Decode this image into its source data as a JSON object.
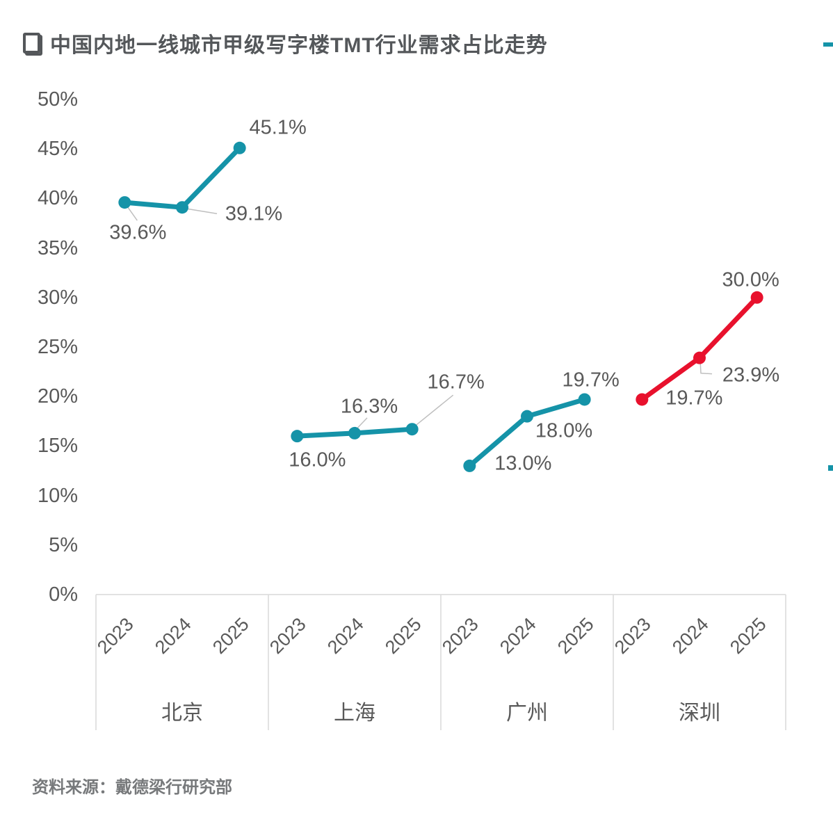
{
  "title": "中国内地一线城市甲级写字楼TMT行业需求占比走势",
  "source": "资料来源：戴德梁行研究部",
  "colors": {
    "teal": "#1593A8",
    "red": "#E8112D",
    "text_gray": "#595959",
    "title_gray": "#54575A",
    "axis_gray": "#D9D9D9",
    "leader_gray": "#BFBFBF",
    "source_gray": "#77797B"
  },
  "chart_data": {
    "type": "line",
    "title": "中国内地一线城市甲级写字楼TMT行业需求占比走势",
    "ylim": [
      0,
      50
    ],
    "y_ticks": [
      "0%",
      "5%",
      "10%",
      "15%",
      "20%",
      "25%",
      "30%",
      "35%",
      "40%",
      "45%",
      "50%"
    ],
    "x_years": [
      "2023",
      "2024",
      "2025"
    ],
    "grid": false,
    "legend_position": "none",
    "data_label_format": "one-decimal-percent",
    "series": [
      {
        "key": "beijing",
        "name": "北京",
        "color": "#1593A8",
        "values": [
          39.6,
          39.1,
          45.1
        ],
        "labels": [
          "39.6%",
          "39.1%",
          "45.1%"
        ]
      },
      {
        "key": "shanghai",
        "name": "上海",
        "color": "#1593A8",
        "values": [
          16.0,
          16.3,
          16.7
        ],
        "labels": [
          "16.0%",
          "16.3%",
          "16.7%"
        ]
      },
      {
        "key": "guangzhou",
        "name": "广州",
        "color": "#1593A8",
        "values": [
          13.0,
          18.0,
          19.7
        ],
        "labels": [
          "13.0%",
          "18.0%",
          "19.7%"
        ]
      },
      {
        "key": "shenzhen",
        "name": "深圳",
        "color": "#E8112D",
        "values": [
          19.7,
          23.9,
          30.0
        ],
        "labels": [
          "19.7%",
          "23.9%",
          "30.0%"
        ]
      }
    ]
  },
  "edge_markers": [
    {
      "name": "clipped-teal-mark-top",
      "color": "#1593A8"
    },
    {
      "name": "clipped-teal-mark-middle",
      "color": "#1593A8"
    }
  ]
}
